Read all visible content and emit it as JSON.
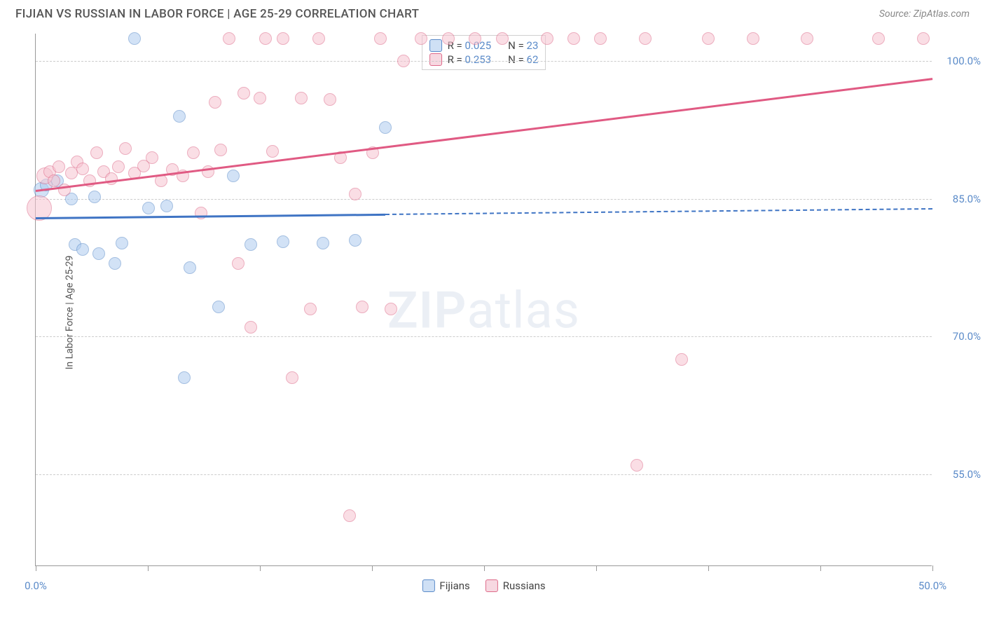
{
  "title": "FIJIAN VS RUSSIAN IN LABOR FORCE | AGE 25-29 CORRELATION CHART",
  "source": "Source: ZipAtlas.com",
  "y_axis_label": "In Labor Force | Age 25-29",
  "watermark_a": "ZIP",
  "watermark_b": "atlas",
  "chart": {
    "type": "scatter",
    "xlim": [
      0,
      50
    ],
    "ylim": [
      45,
      103
    ],
    "x_tick_positions": [
      0,
      6.25,
      12.5,
      18.75,
      25,
      31.25,
      37.5,
      43.75,
      50
    ],
    "x_tick_labels": {
      "0": "0.0%",
      "50": "50.0%"
    },
    "y_gridlines": [
      55,
      70,
      85,
      100
    ],
    "y_tick_labels": {
      "55": "55.0%",
      "70": "70.0%",
      "85": "85.0%",
      "100": "100.0%"
    },
    "grid_color": "#cccccc",
    "axis_color": "#999999",
    "background_color": "#ffffff",
    "tick_label_color": "#5b8bc9",
    "series": [
      {
        "name": "Fijians",
        "fill_color": "#aeccf0",
        "stroke_color": "#5b8bc9",
        "fill_opacity": 0.55,
        "marker_radius": 9,
        "trend": {
          "x1": 0,
          "y1": 83,
          "x2": 50,
          "y2": 84,
          "solid_until_x": 19.5,
          "color": "#3f74c4"
        },
        "legend_swatch_fill": "#cfe0f5",
        "legend_swatch_stroke": "#5b8bc9",
        "r_label": "R = ",
        "r_value": "0.025",
        "n_label": "N = ",
        "n_value": "23",
        "points": [
          {
            "x": 0.3,
            "y": 86,
            "r": 11
          },
          {
            "x": 0.6,
            "y": 86.5
          },
          {
            "x": 1.2,
            "y": 87
          },
          {
            "x": 2.0,
            "y": 85
          },
          {
            "x": 2.2,
            "y": 80
          },
          {
            "x": 2.6,
            "y": 79.5
          },
          {
            "x": 3.3,
            "y": 85.2
          },
          {
            "x": 3.5,
            "y": 79
          },
          {
            "x": 4.4,
            "y": 78
          },
          {
            "x": 4.8,
            "y": 80.2
          },
          {
            "x": 5.5,
            "y": 102.5
          },
          {
            "x": 6.3,
            "y": 84
          },
          {
            "x": 7.3,
            "y": 84.2
          },
          {
            "x": 8.0,
            "y": 94
          },
          {
            "x": 8.3,
            "y": 65.5
          },
          {
            "x": 8.6,
            "y": 77.5
          },
          {
            "x": 10.2,
            "y": 73.2
          },
          {
            "x": 11.0,
            "y": 87.5
          },
          {
            "x": 12.0,
            "y": 80
          },
          {
            "x": 13.8,
            "y": 80.3
          },
          {
            "x": 16.0,
            "y": 80.2
          },
          {
            "x": 17.8,
            "y": 80.5
          },
          {
            "x": 19.5,
            "y": 92.8
          }
        ]
      },
      {
        "name": "Russians",
        "fill_color": "#f6c4d1",
        "stroke_color": "#de6b8a",
        "fill_opacity": 0.55,
        "marker_radius": 9,
        "trend": {
          "x1": 0,
          "y1": 86,
          "x2": 50,
          "y2": 98.2,
          "solid_until_x": 50,
          "color": "#e05a83"
        },
        "legend_swatch_fill": "#f7d8e1",
        "legend_swatch_stroke": "#de6b8a",
        "r_label": "R = ",
        "r_value": "0.253",
        "n_label": "N = ",
        "n_value": "62",
        "points": [
          {
            "x": 0.2,
            "y": 84,
            "r": 18
          },
          {
            "x": 0.5,
            "y": 87.5,
            "r": 12
          },
          {
            "x": 0.8,
            "y": 88
          },
          {
            "x": 1.0,
            "y": 87
          },
          {
            "x": 1.3,
            "y": 88.5
          },
          {
            "x": 1.6,
            "y": 86
          },
          {
            "x": 2.0,
            "y": 87.8
          },
          {
            "x": 2.3,
            "y": 89
          },
          {
            "x": 2.6,
            "y": 88.3
          },
          {
            "x": 3.0,
            "y": 87
          },
          {
            "x": 3.4,
            "y": 90
          },
          {
            "x": 3.8,
            "y": 88
          },
          {
            "x": 4.2,
            "y": 87.2
          },
          {
            "x": 4.6,
            "y": 88.5
          },
          {
            "x": 5.0,
            "y": 90.5
          },
          {
            "x": 5.5,
            "y": 87.8
          },
          {
            "x": 6.0,
            "y": 88.6
          },
          {
            "x": 6.5,
            "y": 89.5
          },
          {
            "x": 7.0,
            "y": 87
          },
          {
            "x": 7.6,
            "y": 88.2
          },
          {
            "x": 8.2,
            "y": 87.5
          },
          {
            "x": 8.8,
            "y": 90
          },
          {
            "x": 9.2,
            "y": 83.5
          },
          {
            "x": 9.6,
            "y": 88
          },
          {
            "x": 10.0,
            "y": 95.5
          },
          {
            "x": 10.3,
            "y": 90.3
          },
          {
            "x": 10.8,
            "y": 102.5
          },
          {
            "x": 11.3,
            "y": 78
          },
          {
            "x": 11.6,
            "y": 96.5
          },
          {
            "x": 12.0,
            "y": 71
          },
          {
            "x": 12.5,
            "y": 96
          },
          {
            "x": 12.8,
            "y": 102.5
          },
          {
            "x": 13.2,
            "y": 90.2
          },
          {
            "x": 13.8,
            "y": 102.5
          },
          {
            "x": 14.3,
            "y": 65.5
          },
          {
            "x": 14.8,
            "y": 96
          },
          {
            "x": 15.3,
            "y": 73
          },
          {
            "x": 15.8,
            "y": 102.5
          },
          {
            "x": 16.4,
            "y": 95.8
          },
          {
            "x": 17.0,
            "y": 89.5
          },
          {
            "x": 17.5,
            "y": 50.5
          },
          {
            "x": 17.8,
            "y": 85.5
          },
          {
            "x": 18.2,
            "y": 73.2
          },
          {
            "x": 18.8,
            "y": 90
          },
          {
            "x": 19.2,
            "y": 102.5
          },
          {
            "x": 19.8,
            "y": 73
          },
          {
            "x": 20.5,
            "y": 100
          },
          {
            "x": 21.5,
            "y": 102.5
          },
          {
            "x": 23.0,
            "y": 102.5
          },
          {
            "x": 24.5,
            "y": 102.5
          },
          {
            "x": 26.0,
            "y": 102.5
          },
          {
            "x": 28.5,
            "y": 102.5
          },
          {
            "x": 30.0,
            "y": 102.5
          },
          {
            "x": 31.5,
            "y": 102.5
          },
          {
            "x": 33.5,
            "y": 56
          },
          {
            "x": 34.0,
            "y": 102.5
          },
          {
            "x": 36.0,
            "y": 67.5
          },
          {
            "x": 37.5,
            "y": 102.5
          },
          {
            "x": 40.0,
            "y": 102.5
          },
          {
            "x": 43.0,
            "y": 102.5
          },
          {
            "x": 47.0,
            "y": 102.5
          },
          {
            "x": 49.5,
            "y": 102.5
          }
        ]
      }
    ]
  },
  "legend_bottom": [
    {
      "label": "Fijians",
      "series_idx": 0
    },
    {
      "label": "Russians",
      "series_idx": 1
    }
  ]
}
